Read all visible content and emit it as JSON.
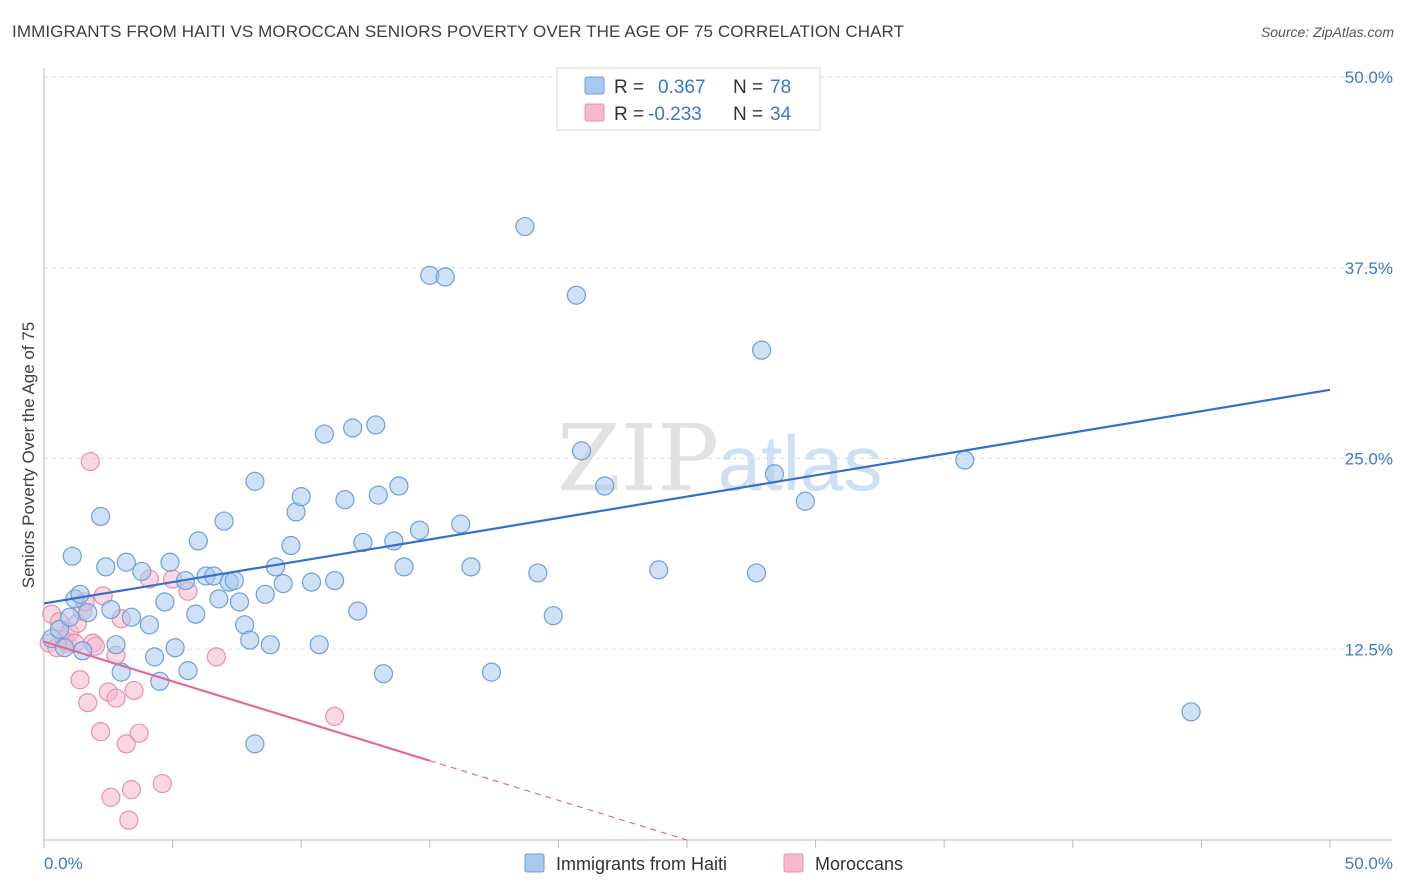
{
  "title": "IMMIGRANTS FROM HAITI VS MOROCCAN SENIORS POVERTY OVER THE AGE OF 75 CORRELATION CHART",
  "source": "Source: ZipAtlas.com",
  "watermark": {
    "zip": "ZIP",
    "atlas": "atlas"
  },
  "colors": {
    "blue_fill": "#a8c8ee",
    "blue_stroke": "#6f9fd8",
    "blue_line": "#3370cc",
    "pink_fill": "#f6b8cc",
    "pink_stroke": "#e890ad",
    "pink_line": "#e06a98",
    "axis_text": "#3d78c8",
    "grid": "#dddddd"
  },
  "legend": [
    {
      "r_label": "R =",
      "r_value": "0.367",
      "n_label": "N =",
      "n_value": "78"
    },
    {
      "r_label": "R =",
      "r_value": "-0.233",
      "n_label": "N =",
      "n_value": "34"
    }
  ],
  "chart_data": {
    "type": "scatter",
    "title": "IMMIGRANTS FROM HAITI VS MOROCCAN SENIORS POVERTY OVER THE AGE OF 75 CORRELATION CHART",
    "xlabel": "",
    "ylabel": "Seniors Poverty Over the Age of 75",
    "xlim": [
      0,
      50
    ],
    "ylim": [
      0,
      50
    ],
    "x_tick_labels": [
      "0.0%",
      "50.0%"
    ],
    "y_ticks": [
      12.5,
      25.0,
      37.5,
      50.0
    ],
    "y_tick_labels": [
      "12.5%",
      "25.0%",
      "37.5%",
      "50.0%"
    ],
    "series": [
      {
        "name": "Immigrants from Haiti",
        "color": "blue",
        "r": 0.367,
        "n": 78,
        "trend": {
          "x0": 0,
          "y0": 15.5,
          "x1": 50,
          "y1": 29.5
        },
        "points": [
          [
            0.3,
            13.2
          ],
          [
            0.6,
            13.8
          ],
          [
            0.8,
            12.6
          ],
          [
            1.0,
            14.6
          ],
          [
            1.1,
            18.6
          ],
          [
            1.2,
            15.8
          ],
          [
            1.4,
            16.1
          ],
          [
            1.5,
            12.4
          ],
          [
            1.7,
            14.9
          ],
          [
            2.2,
            21.2
          ],
          [
            2.4,
            17.9
          ],
          [
            2.6,
            15.1
          ],
          [
            2.8,
            12.8
          ],
          [
            3.0,
            11.0
          ],
          [
            3.2,
            18.2
          ],
          [
            3.4,
            14.6
          ],
          [
            3.8,
            17.6
          ],
          [
            4.1,
            14.1
          ],
          [
            4.3,
            12.0
          ],
          [
            4.5,
            10.4
          ],
          [
            4.7,
            15.6
          ],
          [
            4.9,
            18.2
          ],
          [
            5.1,
            12.6
          ],
          [
            5.5,
            17.0
          ],
          [
            5.6,
            11.1
          ],
          [
            5.9,
            14.8
          ],
          [
            6.0,
            19.6
          ],
          [
            6.3,
            17.3
          ],
          [
            6.6,
            17.3
          ],
          [
            6.8,
            15.8
          ],
          [
            7.0,
            20.9
          ],
          [
            7.2,
            16.9
          ],
          [
            7.4,
            17.0
          ],
          [
            7.6,
            15.6
          ],
          [
            7.8,
            14.1
          ],
          [
            8.0,
            13.1
          ],
          [
            8.2,
            23.5
          ],
          [
            8.6,
            16.1
          ],
          [
            8.8,
            12.8
          ],
          [
            9.0,
            17.9
          ],
          [
            9.3,
            16.8
          ],
          [
            9.6,
            19.3
          ],
          [
            9.8,
            21.5
          ],
          [
            10.0,
            22.5
          ],
          [
            10.4,
            16.9
          ],
          [
            10.7,
            12.8
          ],
          [
            10.9,
            26.6
          ],
          [
            11.3,
            17.0
          ],
          [
            11.7,
            22.3
          ],
          [
            12.0,
            27.0
          ],
          [
            12.2,
            15.0
          ],
          [
            12.4,
            19.5
          ],
          [
            12.9,
            27.2
          ],
          [
            13.0,
            22.6
          ],
          [
            13.2,
            10.9
          ],
          [
            13.6,
            19.6
          ],
          [
            13.8,
            23.2
          ],
          [
            14.0,
            17.9
          ],
          [
            14.6,
            20.3
          ],
          [
            15.0,
            37.0
          ],
          [
            15.6,
            36.9
          ],
          [
            16.2,
            20.7
          ],
          [
            16.6,
            17.9
          ],
          [
            17.4,
            11.0
          ],
          [
            18.7,
            40.2
          ],
          [
            19.2,
            17.5
          ],
          [
            19.8,
            14.7
          ],
          [
            20.7,
            35.7
          ],
          [
            20.9,
            25.5
          ],
          [
            21.8,
            23.2
          ],
          [
            23.9,
            17.7
          ],
          [
            27.7,
            17.5
          ],
          [
            27.9,
            32.1
          ],
          [
            28.4,
            24.0
          ],
          [
            29.6,
            22.2
          ],
          [
            35.8,
            24.9
          ],
          [
            44.6,
            8.4
          ],
          [
            8.2,
            6.3
          ]
        ]
      },
      {
        "name": "Moroccans",
        "color": "pink",
        "r": -0.233,
        "n": 34,
        "trend": {
          "x0": 0,
          "y0": 13.0,
          "x1": 15,
          "y1": 5.2,
          "dash_x1": 25,
          "dash_y1": 0
        },
        "points": [
          [
            0.2,
            12.9
          ],
          [
            0.3,
            14.8
          ],
          [
            0.5,
            12.6
          ],
          [
            0.6,
            14.3
          ],
          [
            0.8,
            13.1
          ],
          [
            0.9,
            12.9
          ],
          [
            1.0,
            13.6
          ],
          [
            1.2,
            12.9
          ],
          [
            1.3,
            14.2
          ],
          [
            1.4,
            10.5
          ],
          [
            1.5,
            15.0
          ],
          [
            1.6,
            15.6
          ],
          [
            1.7,
            9.0
          ],
          [
            1.8,
            24.8
          ],
          [
            1.9,
            12.9
          ],
          [
            2.0,
            12.7
          ],
          [
            2.2,
            7.1
          ],
          [
            2.3,
            16.0
          ],
          [
            2.5,
            9.7
          ],
          [
            2.6,
            2.8
          ],
          [
            2.8,
            9.3
          ],
          [
            2.8,
            12.1
          ],
          [
            3.0,
            14.5
          ],
          [
            3.2,
            6.3
          ],
          [
            3.3,
            1.3
          ],
          [
            3.4,
            3.3
          ],
          [
            3.5,
            9.8
          ],
          [
            3.7,
            7.0
          ],
          [
            4.1,
            17.1
          ],
          [
            4.6,
            3.7
          ],
          [
            5.0,
            17.1
          ],
          [
            5.6,
            16.3
          ],
          [
            6.7,
            12.0
          ],
          [
            11.3,
            8.1
          ]
        ]
      }
    ]
  }
}
